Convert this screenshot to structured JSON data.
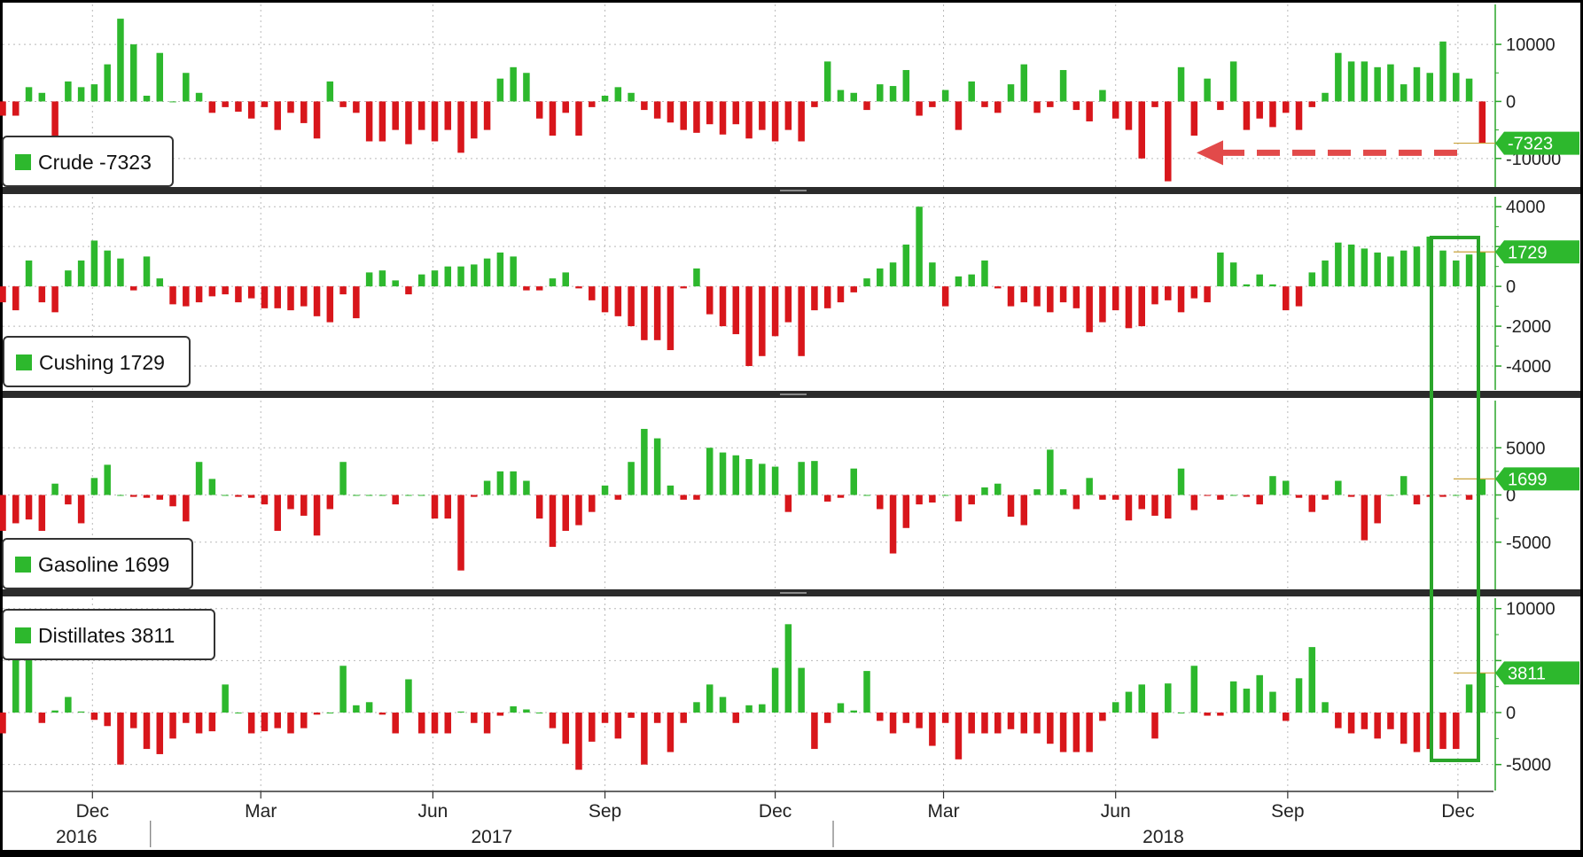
{
  "chart_data": {
    "type": "bar",
    "colors": {
      "positive": "#2db82d",
      "negative": "#d8161b",
      "arrow": "#e24a4a",
      "highlight_box": "#2aa52a",
      "label_fill": "#2db82d"
    },
    "x_axis": {
      "months": [
        "Dec",
        "Mar",
        "Jun",
        "Sep",
        "Dec",
        "Mar",
        "Jun",
        "Sep",
        "Dec"
      ],
      "years": [
        "2016",
        "2017",
        "2018"
      ],
      "range": [
        "2016-10-14",
        "2018-12-20"
      ]
    },
    "grid": true,
    "highlight": {
      "from": "2018-11-21",
      "to": "2018-12-17"
    },
    "panels": [
      {
        "name": "Crude",
        "legend_label": "Crude",
        "legend_value": "-7323",
        "last_value_label": "-7323",
        "ylim": [
          -15000,
          17000
        ],
        "ticks": [
          10000,
          0,
          -10000
        ],
        "tick_labels": [
          "10000",
          "0",
          "-10000"
        ],
        "arrow": true,
        "values": [
          -1500,
          -2500,
          5000,
          -5000,
          0,
          15000,
          2500,
          5500,
          -1000,
          -1500,
          -2500,
          -2500,
          2500,
          1500,
          -6500,
          3500,
          2500,
          3000,
          6500,
          14500,
          10000,
          1000,
          8500,
          0,
          5000,
          1500,
          -2000,
          -1000,
          -1800,
          -3000,
          -1000,
          -5000,
          -2000,
          -3800,
          -6500,
          3500,
          -1000,
          -2000,
          -7000,
          -7000,
          -5000,
          -7500,
          -5000,
          -7000,
          -5000,
          -9000,
          -6500,
          -5000,
          4000,
          6000,
          5000,
          -3000,
          -6000,
          -2000,
          -6000,
          -1000,
          1000,
          2500,
          1500,
          -1500,
          -3000,
          -3700,
          -5000,
          -5500,
          -4000,
          -5800,
          -4000,
          -6500,
          -5000,
          -7000,
          -5000,
          -7000,
          -1000,
          7000,
          2000,
          1500,
          -1500,
          3000,
          2700,
          5500,
          -2500,
          -1000,
          2000,
          -5000,
          3500,
          -1000,
          -2000,
          3000,
          6500,
          -2000,
          -1000,
          5500,
          -1500,
          -3500,
          2000,
          -3000,
          -5000,
          -10000,
          -1000,
          -14000,
          6000,
          -6000,
          4000,
          -1500,
          7000,
          -5000,
          -3000,
          -4500,
          -2000,
          -5000,
          -1000,
          1500,
          8500,
          7000,
          7000,
          6000,
          6500,
          3000,
          6000,
          5000,
          10500,
          5000,
          4000,
          -7323
        ]
      },
      {
        "name": "Cushing",
        "legend_label": "Cushing",
        "legend_value": "1729",
        "last_value_label": "1729",
        "ylim": [
          -5200,
          4500
        ],
        "ticks": [
          4000,
          2000,
          0,
          -2000,
          -4000
        ],
        "tick_labels": [
          "4000",
          "",
          "0",
          "-2000",
          "-4000"
        ],
        "values": [
          -400,
          700,
          -1100,
          -1500,
          -1400,
          100,
          50,
          900,
          2000,
          3900,
          1500,
          -200,
          -100,
          1300,
          -500,
          -1000,
          -1100,
          -800,
          -1200,
          1300,
          -800,
          -1300,
          800,
          1300,
          2300,
          1800,
          1400,
          -200,
          1500,
          400,
          -900,
          -1000,
          -800,
          -500,
          -400,
          -800,
          -600,
          -1100,
          -1100,
          -1200,
          -1000,
          -1500,
          -1800,
          -400,
          -1600,
          700,
          800,
          300,
          -400,
          600,
          800,
          1000,
          1000,
          1100,
          1400,
          1700,
          1500,
          -200,
          -200,
          400,
          700,
          -100,
          -700,
          -1300,
          -1500,
          -2000,
          -2700,
          -2700,
          -3200,
          -100,
          900,
          -1400,
          -2000,
          -2400,
          -4000,
          -3500,
          -2500,
          -1800,
          -3500,
          -1200,
          -1100,
          -800,
          -300,
          400,
          900,
          1200,
          2100,
          4000,
          1200,
          -1000,
          500,
          600,
          1300,
          -100,
          -1000,
          -800,
          -1000,
          -1300,
          -800,
          -1100,
          -2300,
          -1800,
          -1200,
          -2100,
          -2000,
          -900,
          -700,
          -1300,
          -600,
          -800,
          1700,
          1200,
          100,
          600,
          100,
          -1200,
          -1000,
          700,
          1300,
          2200,
          2100,
          1900,
          1700,
          1500,
          1800,
          2000,
          2500,
          1800,
          1300,
          1600,
          1729
        ]
      },
      {
        "name": "Gasoline",
        "legend_label": "Gasoline",
        "legend_value": "1699",
        "last_value_label": "1699",
        "ylim": [
          -10000,
          10000
        ],
        "ticks": [
          5000,
          0,
          -5000
        ],
        "tick_labels": [
          "5000",
          "0",
          "-5000"
        ],
        "values": [
          2000,
          -500,
          -2000,
          2800,
          -1700,
          -2200,
          -2800,
          1000,
          2500,
          2300,
          2300,
          3500,
          -500,
          -1000,
          -1200,
          8500,
          5300,
          5800,
          6800,
          3800,
          -500,
          2800,
          -1000,
          -2500,
          0,
          -6500,
          -3800,
          -3000,
          -2600,
          -3800,
          1200,
          -1000,
          -3000,
          1800,
          3200,
          0,
          -200,
          -300,
          -500,
          -1200,
          -2800,
          3500,
          1700,
          0,
          -200,
          -300,
          -1000,
          -3800,
          -1500,
          -2200,
          -4300,
          -1500,
          3500,
          0,
          0,
          0,
          -1000,
          0,
          0,
          -2500,
          -2500,
          -8000,
          -200,
          1500,
          2500,
          2500,
          1500,
          -2500,
          -5500,
          -3800,
          -3200,
          -1800,
          1000,
          -500,
          3500,
          7000,
          6000,
          1000,
          -500,
          -500,
          5000,
          4500,
          4200,
          3800,
          3300,
          3000,
          -1800,
          3500,
          3600,
          -700,
          -300,
          2800,
          0,
          -1500,
          -6200,
          -3500,
          -1000,
          -800,
          0,
          -2800,
          -1000,
          800,
          1200,
          -2300,
          -3200,
          600,
          4800,
          600,
          -1500,
          1800,
          -500,
          -500,
          -2700,
          -1500,
          -2200,
          -2500,
          2800,
          -1600,
          -100,
          -500,
          0,
          -200,
          -1000,
          2000,
          1500,
          -300,
          -1800,
          -500,
          1500,
          -200,
          -4800,
          -3000,
          0,
          2000,
          -1000,
          -200,
          -200,
          0,
          -500,
          1699
        ]
      },
      {
        "name": "Distillates",
        "legend_label": "Distillates",
        "legend_value": "3811",
        "last_value_label": "3811",
        "ylim": [
          -7500,
          11000
        ],
        "ticks": [
          10000,
          5000,
          0,
          -5000
        ],
        "tick_labels": [
          "10000",
          "",
          "0",
          "-5000"
        ],
        "values": [
          -1500,
          -2000,
          -3500,
          -2000,
          -3500,
          -2000,
          -2500,
          -1800,
          200,
          300,
          5000,
          2500,
          0,
          -1500,
          -2000,
          -2000,
          7000,
          7000,
          -1000,
          200,
          1500,
          100,
          -700,
          -1300,
          -5000,
          -1500,
          -3500,
          -4000,
          -2500,
          -1000,
          -2000,
          -1800,
          2700,
          0,
          -2000,
          -1800,
          -1500,
          -2000,
          -1500,
          -200,
          0,
          4500,
          700,
          1000,
          -200,
          -2000,
          3200,
          -2000,
          -2000,
          -2000,
          100,
          -1000,
          -2000,
          -300,
          600,
          300,
          0,
          -1500,
          -3000,
          -5500,
          -2800,
          -1000,
          -2500,
          -500,
          -5000,
          -1000,
          -3800,
          -1000,
          1000,
          2700,
          1500,
          -1000,
          700,
          800,
          4300,
          8500,
          4300,
          -3500,
          -1000,
          900,
          200,
          4000,
          -800,
          -2000,
          -1000,
          -1500,
          -3200,
          -1000,
          -4500,
          -2000,
          -2000,
          -2000,
          -1600,
          -2000,
          -2000,
          -3000,
          -3800,
          -3800,
          -3800,
          -800,
          1000,
          2000,
          2700,
          -2500,
          2800,
          0,
          4500,
          -300,
          -300,
          3000,
          2300,
          3600,
          2000,
          -800,
          3300,
          6300,
          1000,
          -1500,
          -2000,
          -1600,
          -2500,
          -1600,
          -3000,
          -3800,
          -3500,
          -3500,
          -3500,
          2700,
          3811
        ]
      }
    ]
  }
}
